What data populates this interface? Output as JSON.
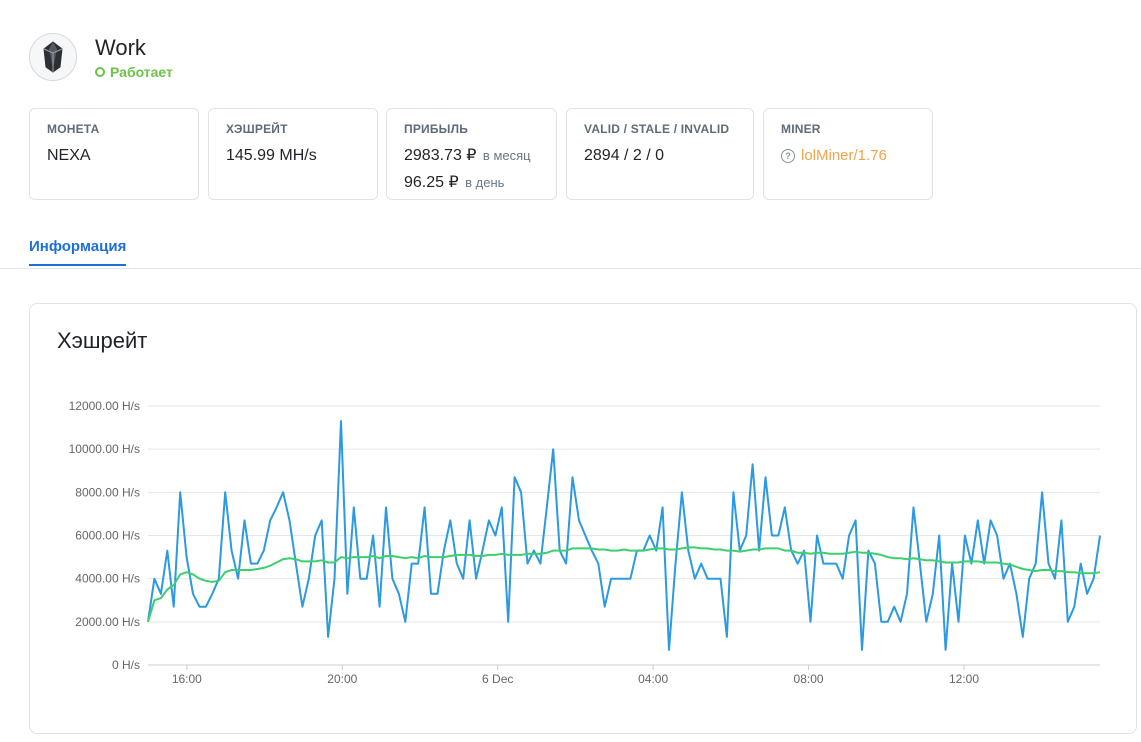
{
  "worker": {
    "name": "Work",
    "status": "Работает",
    "avatar_icon": "crystal-icon"
  },
  "cards": {
    "coin": {
      "label": "МОНЕТА",
      "value": "NEXA"
    },
    "hashrate": {
      "label": "ХЭШРЕЙТ",
      "value": "145.99 MH/s"
    },
    "profit": {
      "label": "ПРИБЫЛЬ",
      "month_value": "2983.73 ₽",
      "month_unit": "в месяц",
      "day_value": "96.25 ₽",
      "day_unit": "в день"
    },
    "shares": {
      "label": "VALID / STALE / INVALID",
      "value": "2894 / 2 / 0"
    },
    "miner": {
      "label": "MINER",
      "value": "lolMiner/1.76",
      "icon": "question-icon"
    }
  },
  "tabs": {
    "active": "Информация"
  },
  "chart_title": "Хэшрейт",
  "colors": {
    "raw": "#2b9ae0",
    "avg": "#3ccf6e",
    "status": "#6cc24a",
    "tab": "#1e6fd9",
    "miner": "#f0a44b"
  },
  "chart_data": {
    "type": "line",
    "title": "Хэшрейт",
    "y_unit": "H/s",
    "ylim": [
      0,
      12000
    ],
    "y_ticks": [
      "0 H/s",
      "2000.00 H/s",
      "4000.00 H/s",
      "6000.00 H/s",
      "8000.00 H/s",
      "10000.00 H/s",
      "12000.00 H/s"
    ],
    "x_ticks": [
      "16:00",
      "20:00",
      "6 Dec",
      "04:00",
      "08:00",
      "12:00"
    ],
    "x_range_hours": [
      15,
      39.5
    ],
    "x_tick_hours": [
      16,
      20,
      24,
      28,
      32,
      36
    ],
    "grid": true,
    "series": [
      {
        "values": [
          2000,
          4000,
          3300,
          5300,
          2700,
          8000,
          5000,
          3300,
          2700,
          2700,
          3300,
          4000,
          8000,
          5300,
          4000,
          6700,
          4700,
          4700,
          5300,
          6700,
          7300,
          8000,
          6700,
          4700,
          2700,
          4000,
          6000,
          6700,
          1300,
          4000,
          11300,
          3300,
          7300,
          4000,
          4000,
          6000,
          2700,
          7300,
          4000,
          3300,
          2000,
          4700,
          4700,
          7300,
          3300,
          3300,
          5300,
          6700,
          4700,
          4000,
          6700,
          4000,
          5300,
          6700,
          6000,
          7300,
          2000,
          8700,
          8000,
          4700,
          5300,
          4700,
          7300,
          10000,
          5300,
          4700,
          8700,
          6700,
          6000,
          5300,
          4700,
          2700,
          4000,
          4000,
          4000,
          4000,
          5300,
          5300,
          6000,
          5300,
          7300,
          700,
          4700,
          8000,
          5300,
          4000,
          4700,
          4000,
          4000,
          4000,
          1300,
          8000,
          5300,
          6000,
          9300,
          5300,
          8700,
          6000,
          6000,
          7300,
          5300,
          4700,
          5300,
          2000,
          6000,
          4700,
          4700,
          4700,
          4000,
          6000,
          6700,
          700,
          5300,
          4700,
          2000,
          2000,
          2700,
          2000,
          3300,
          7300,
          4700,
          2000,
          3300,
          6000,
          700,
          4700,
          2000,
          6000,
          4700,
          6700,
          4700,
          6700,
          6000,
          4000,
          4700,
          3300,
          1300,
          4000,
          4700,
          8000,
          4700,
          4000,
          6700,
          2000,
          2700,
          4700,
          3300,
          4000,
          6000
        ]
      },
      {
        "values": [
          2000,
          3000,
          3100,
          3500,
          3700,
          4200,
          4300,
          4200,
          4000,
          3900,
          3850,
          3900,
          4300,
          4400,
          4400,
          4400,
          4400,
          4450,
          4500,
          4600,
          4750,
          4900,
          4950,
          4900,
          4800,
          4800,
          4800,
          4850,
          4750,
          4750,
          5000,
          4950,
          5000,
          5000,
          5000,
          5050,
          4950,
          5050,
          5050,
          5000,
          4950,
          5000,
          4950,
          5050,
          5000,
          5000,
          5000,
          5050,
          5100,
          5100,
          5100,
          5050,
          5050,
          5100,
          5100,
          5150,
          5100,
          5100,
          5100,
          5150,
          5150,
          5150,
          5200,
          5300,
          5300,
          5300,
          5400,
          5400,
          5400,
          5400,
          5350,
          5350,
          5300,
          5300,
          5350,
          5300,
          5300,
          5300,
          5350,
          5400,
          5400,
          5350,
          5350,
          5400,
          5450,
          5450,
          5400,
          5400,
          5350,
          5350,
          5300,
          5300,
          5250,
          5300,
          5350,
          5350,
          5400,
          5400,
          5400,
          5300,
          5300,
          5200,
          5200,
          5150,
          5200,
          5200,
          5150,
          5150,
          5150,
          5200,
          5250,
          5200,
          5200,
          5150,
          5100,
          5000,
          4950,
          4950,
          4900,
          4950,
          4900,
          4850,
          4850,
          4800,
          4750,
          4750,
          4750,
          4800,
          4800,
          4800,
          4750,
          4750,
          4750,
          4700,
          4650,
          4550,
          4450,
          4400,
          4350,
          4400,
          4400,
          4350,
          4350,
          4300,
          4300,
          4250,
          4250,
          4250,
          4300
        ]
      }
    ]
  }
}
